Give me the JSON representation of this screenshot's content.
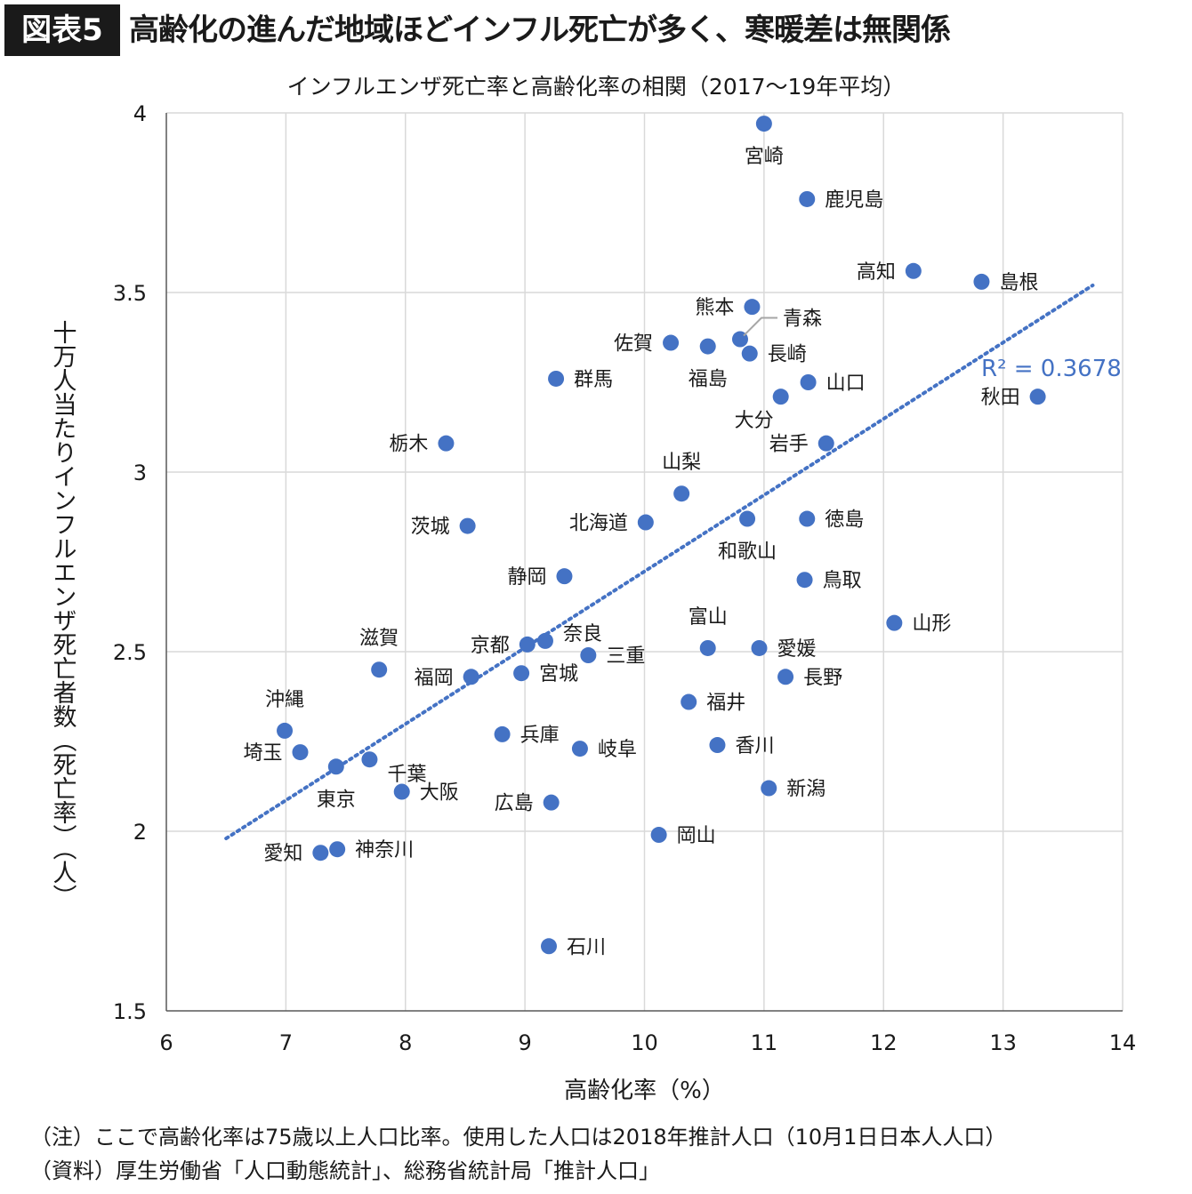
{
  "header": {
    "figure_label": "図表5",
    "headline": "高齢化の進んだ地域ほどインフル死亡が多く、寒暖差は無関係"
  },
  "colors": {
    "marker": "#4472C4",
    "trendline": "#4472C4",
    "grid": "#d9d9d9",
    "badge": "#1a1a1a"
  },
  "chart_data": {
    "type": "scatter",
    "title": "インフルエンザ死亡率と高齢化率の相関（2017〜19年平均）",
    "xlabel": "高齢化率（%）",
    "ylabel": "十万人当たりインフルエンザ死亡者数（死亡率）（人）",
    "xlim": [
      6,
      14
    ],
    "ylim": [
      1.5,
      4
    ],
    "xticks": [
      6,
      7,
      8,
      9,
      10,
      11,
      12,
      13,
      14
    ],
    "yticks": [
      1.5,
      2,
      2.5,
      3,
      3.5,
      4
    ],
    "grid": true,
    "trendline": {
      "type": "linear",
      "x_range": [
        6.5,
        13.75
      ],
      "y_start": 1.98,
      "y_end": 3.52,
      "r_squared_label": "R² = 0.3678"
    },
    "points": [
      {
        "name": "宮崎",
        "x": 11.0,
        "y": 3.97,
        "label_pos": "below"
      },
      {
        "name": "鹿児島",
        "x": 11.36,
        "y": 3.76,
        "label_pos": "right"
      },
      {
        "name": "高知",
        "x": 12.25,
        "y": 3.56,
        "label_pos": "left"
      },
      {
        "name": "島根",
        "x": 12.82,
        "y": 3.53,
        "label_pos": "right"
      },
      {
        "name": "熊本",
        "x": 10.9,
        "y": 3.46,
        "label_pos": "left"
      },
      {
        "name": "青森",
        "x": 10.8,
        "y": 3.37,
        "label_pos": "callout"
      },
      {
        "name": "佐賀",
        "x": 10.22,
        "y": 3.36,
        "label_pos": "left"
      },
      {
        "name": "福島",
        "x": 10.53,
        "y": 3.35,
        "label_pos": "below"
      },
      {
        "name": "長崎",
        "x": 10.88,
        "y": 3.33,
        "label_pos": "right"
      },
      {
        "name": "群馬",
        "x": 9.26,
        "y": 3.26,
        "label_pos": "right"
      },
      {
        "name": "山口",
        "x": 11.37,
        "y": 3.25,
        "label_pos": "right"
      },
      {
        "name": "大分",
        "x": 11.14,
        "y": 3.21,
        "label_pos": "below-left"
      },
      {
        "name": "秋田",
        "x": 13.29,
        "y": 3.21,
        "label_pos": "left"
      },
      {
        "name": "栃木",
        "x": 8.34,
        "y": 3.08,
        "label_pos": "left"
      },
      {
        "name": "岩手",
        "x": 11.52,
        "y": 3.08,
        "label_pos": "left"
      },
      {
        "name": "山梨",
        "x": 10.31,
        "y": 2.94,
        "label_pos": "above"
      },
      {
        "name": "北海道",
        "x": 10.01,
        "y": 2.86,
        "label_pos": "left"
      },
      {
        "name": "和歌山",
        "x": 10.86,
        "y": 2.87,
        "label_pos": "below"
      },
      {
        "name": "徳島",
        "x": 11.36,
        "y": 2.87,
        "label_pos": "right"
      },
      {
        "name": "茨城",
        "x": 8.52,
        "y": 2.85,
        "label_pos": "left"
      },
      {
        "name": "静岡",
        "x": 9.33,
        "y": 2.71,
        "label_pos": "left"
      },
      {
        "name": "鳥取",
        "x": 11.34,
        "y": 2.7,
        "label_pos": "right"
      },
      {
        "name": "山形",
        "x": 12.09,
        "y": 2.58,
        "label_pos": "right"
      },
      {
        "name": "富山",
        "x": 10.53,
        "y": 2.51,
        "label_pos": "above"
      },
      {
        "name": "奈良",
        "x": 9.17,
        "y": 2.53,
        "label_pos": "above-right"
      },
      {
        "name": "京都",
        "x": 9.02,
        "y": 2.52,
        "label_pos": "left"
      },
      {
        "name": "三重",
        "x": 9.53,
        "y": 2.49,
        "label_pos": "right"
      },
      {
        "name": "愛媛",
        "x": 10.96,
        "y": 2.51,
        "label_pos": "right"
      },
      {
        "name": "滋賀",
        "x": 7.78,
        "y": 2.45,
        "label_pos": "above"
      },
      {
        "name": "福岡",
        "x": 8.55,
        "y": 2.43,
        "label_pos": "left"
      },
      {
        "name": "宮城",
        "x": 8.97,
        "y": 2.44,
        "label_pos": "right"
      },
      {
        "name": "長野",
        "x": 11.18,
        "y": 2.43,
        "label_pos": "right"
      },
      {
        "name": "福井",
        "x": 10.37,
        "y": 2.36,
        "label_pos": "right"
      },
      {
        "name": "沖縄",
        "x": 6.99,
        "y": 2.28,
        "label_pos": "above"
      },
      {
        "name": "兵庫",
        "x": 8.81,
        "y": 2.27,
        "label_pos": "right"
      },
      {
        "name": "岐阜",
        "x": 9.46,
        "y": 2.23,
        "label_pos": "right"
      },
      {
        "name": "香川",
        "x": 10.61,
        "y": 2.24,
        "label_pos": "right"
      },
      {
        "name": "埼玉",
        "x": 7.12,
        "y": 2.22,
        "label_pos": "left"
      },
      {
        "name": "千葉",
        "x": 7.7,
        "y": 2.2,
        "label_pos": "below-right"
      },
      {
        "name": "東京",
        "x": 7.42,
        "y": 2.18,
        "label_pos": "below"
      },
      {
        "name": "新潟",
        "x": 11.04,
        "y": 2.12,
        "label_pos": "right"
      },
      {
        "name": "大阪",
        "x": 7.97,
        "y": 2.11,
        "label_pos": "right"
      },
      {
        "name": "広島",
        "x": 9.22,
        "y": 2.08,
        "label_pos": "left"
      },
      {
        "name": "岡山",
        "x": 10.12,
        "y": 1.99,
        "label_pos": "right"
      },
      {
        "name": "神奈川",
        "x": 7.43,
        "y": 1.95,
        "label_pos": "right"
      },
      {
        "name": "愛知",
        "x": 7.29,
        "y": 1.94,
        "label_pos": "left"
      },
      {
        "name": "石川",
        "x": 9.2,
        "y": 1.68,
        "label_pos": "right"
      }
    ]
  },
  "notes": {
    "note": "（注）ここで高齢化率は75歳以上人口比率。使用した人口は2018年推計人口（10月1日日本人人口）",
    "source": "（資料）厚生労働省「人口動態統計」、総務省統計局「推計人口」"
  }
}
